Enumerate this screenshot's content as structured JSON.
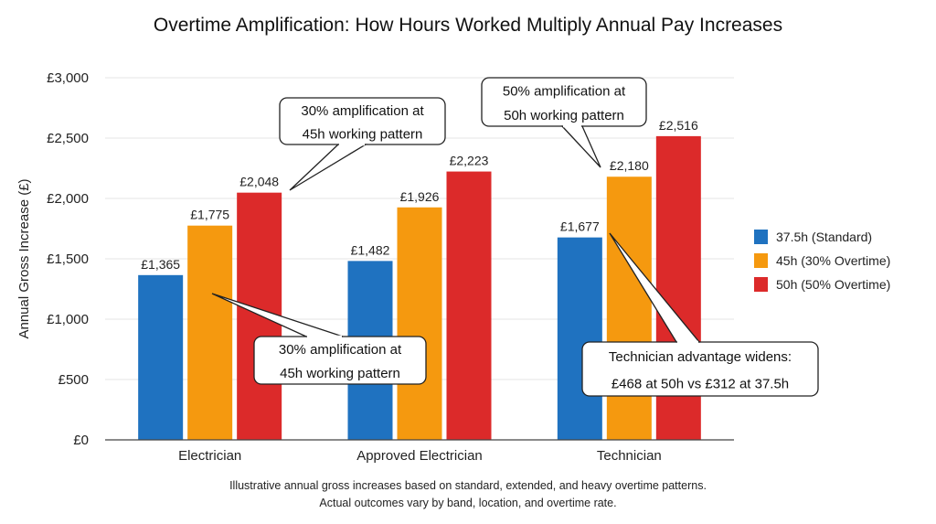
{
  "chart_data": {
    "type": "bar",
    "title": "Overtime Amplification: How Hours Worked Multiply Annual Pay Increases",
    "xlabel": "",
    "ylabel": "Annual Gross Increase (£)",
    "ylim": [
      0,
      3000
    ],
    "yticks": [
      0,
      500,
      1000,
      1500,
      2000,
      2500,
      3000
    ],
    "ytick_labels": [
      "£0",
      "£500",
      "£1,000",
      "£1,500",
      "£2,000",
      "£2,500",
      "£3,000"
    ],
    "grid": true,
    "legend_position": "right",
    "categories": [
      "Electrician",
      "Approved Electrician",
      "Technician"
    ],
    "series": [
      {
        "name": "37.5h (Standard)",
        "color": "#1f72c0",
        "values": [
          1365,
          1482,
          1677
        ],
        "labels": [
          "£1,365",
          "£1,482",
          "£1,677"
        ]
      },
      {
        "name": "45h (30% Overtime)",
        "color": "#f5990f",
        "values": [
          1775,
          1926,
          2180
        ],
        "labels": [
          "£1,775",
          "£1,926",
          "£2,180"
        ]
      },
      {
        "name": "50h (50% Overtime)",
        "color": "#dc2a2a",
        "values": [
          2048,
          2223,
          2516
        ],
        "labels": [
          "£2,048",
          "£2,223",
          "£2,516"
        ]
      }
    ],
    "annotations": [
      {
        "lines": [
          "30% amplification at",
          "45h working pattern"
        ],
        "points_to": {
          "category": "Electrician",
          "series": "50h (50% Overtime)"
        }
      },
      {
        "lines": [
          "30% amplification at",
          "45h working pattern"
        ],
        "points_to": {
          "category": "Electrician",
          "series": "45h (30% Overtime)"
        }
      },
      {
        "lines": [
          "50% amplification at",
          "50h working pattern"
        ],
        "points_to": {
          "category": "Technician",
          "series": "45h (30% Overtime)"
        }
      },
      {
        "lines": [
          "Technician advantage widens:",
          "£468 at 50h vs £312 at 37.5h"
        ],
        "points_to": {
          "category": "Technician",
          "series": "37.5h (Standard)"
        }
      }
    ],
    "footnote": [
      "Illustrative annual gross increases based on standard, extended, and heavy overtime patterns.",
      "Actual outcomes vary by band, location, and overtime rate."
    ]
  }
}
